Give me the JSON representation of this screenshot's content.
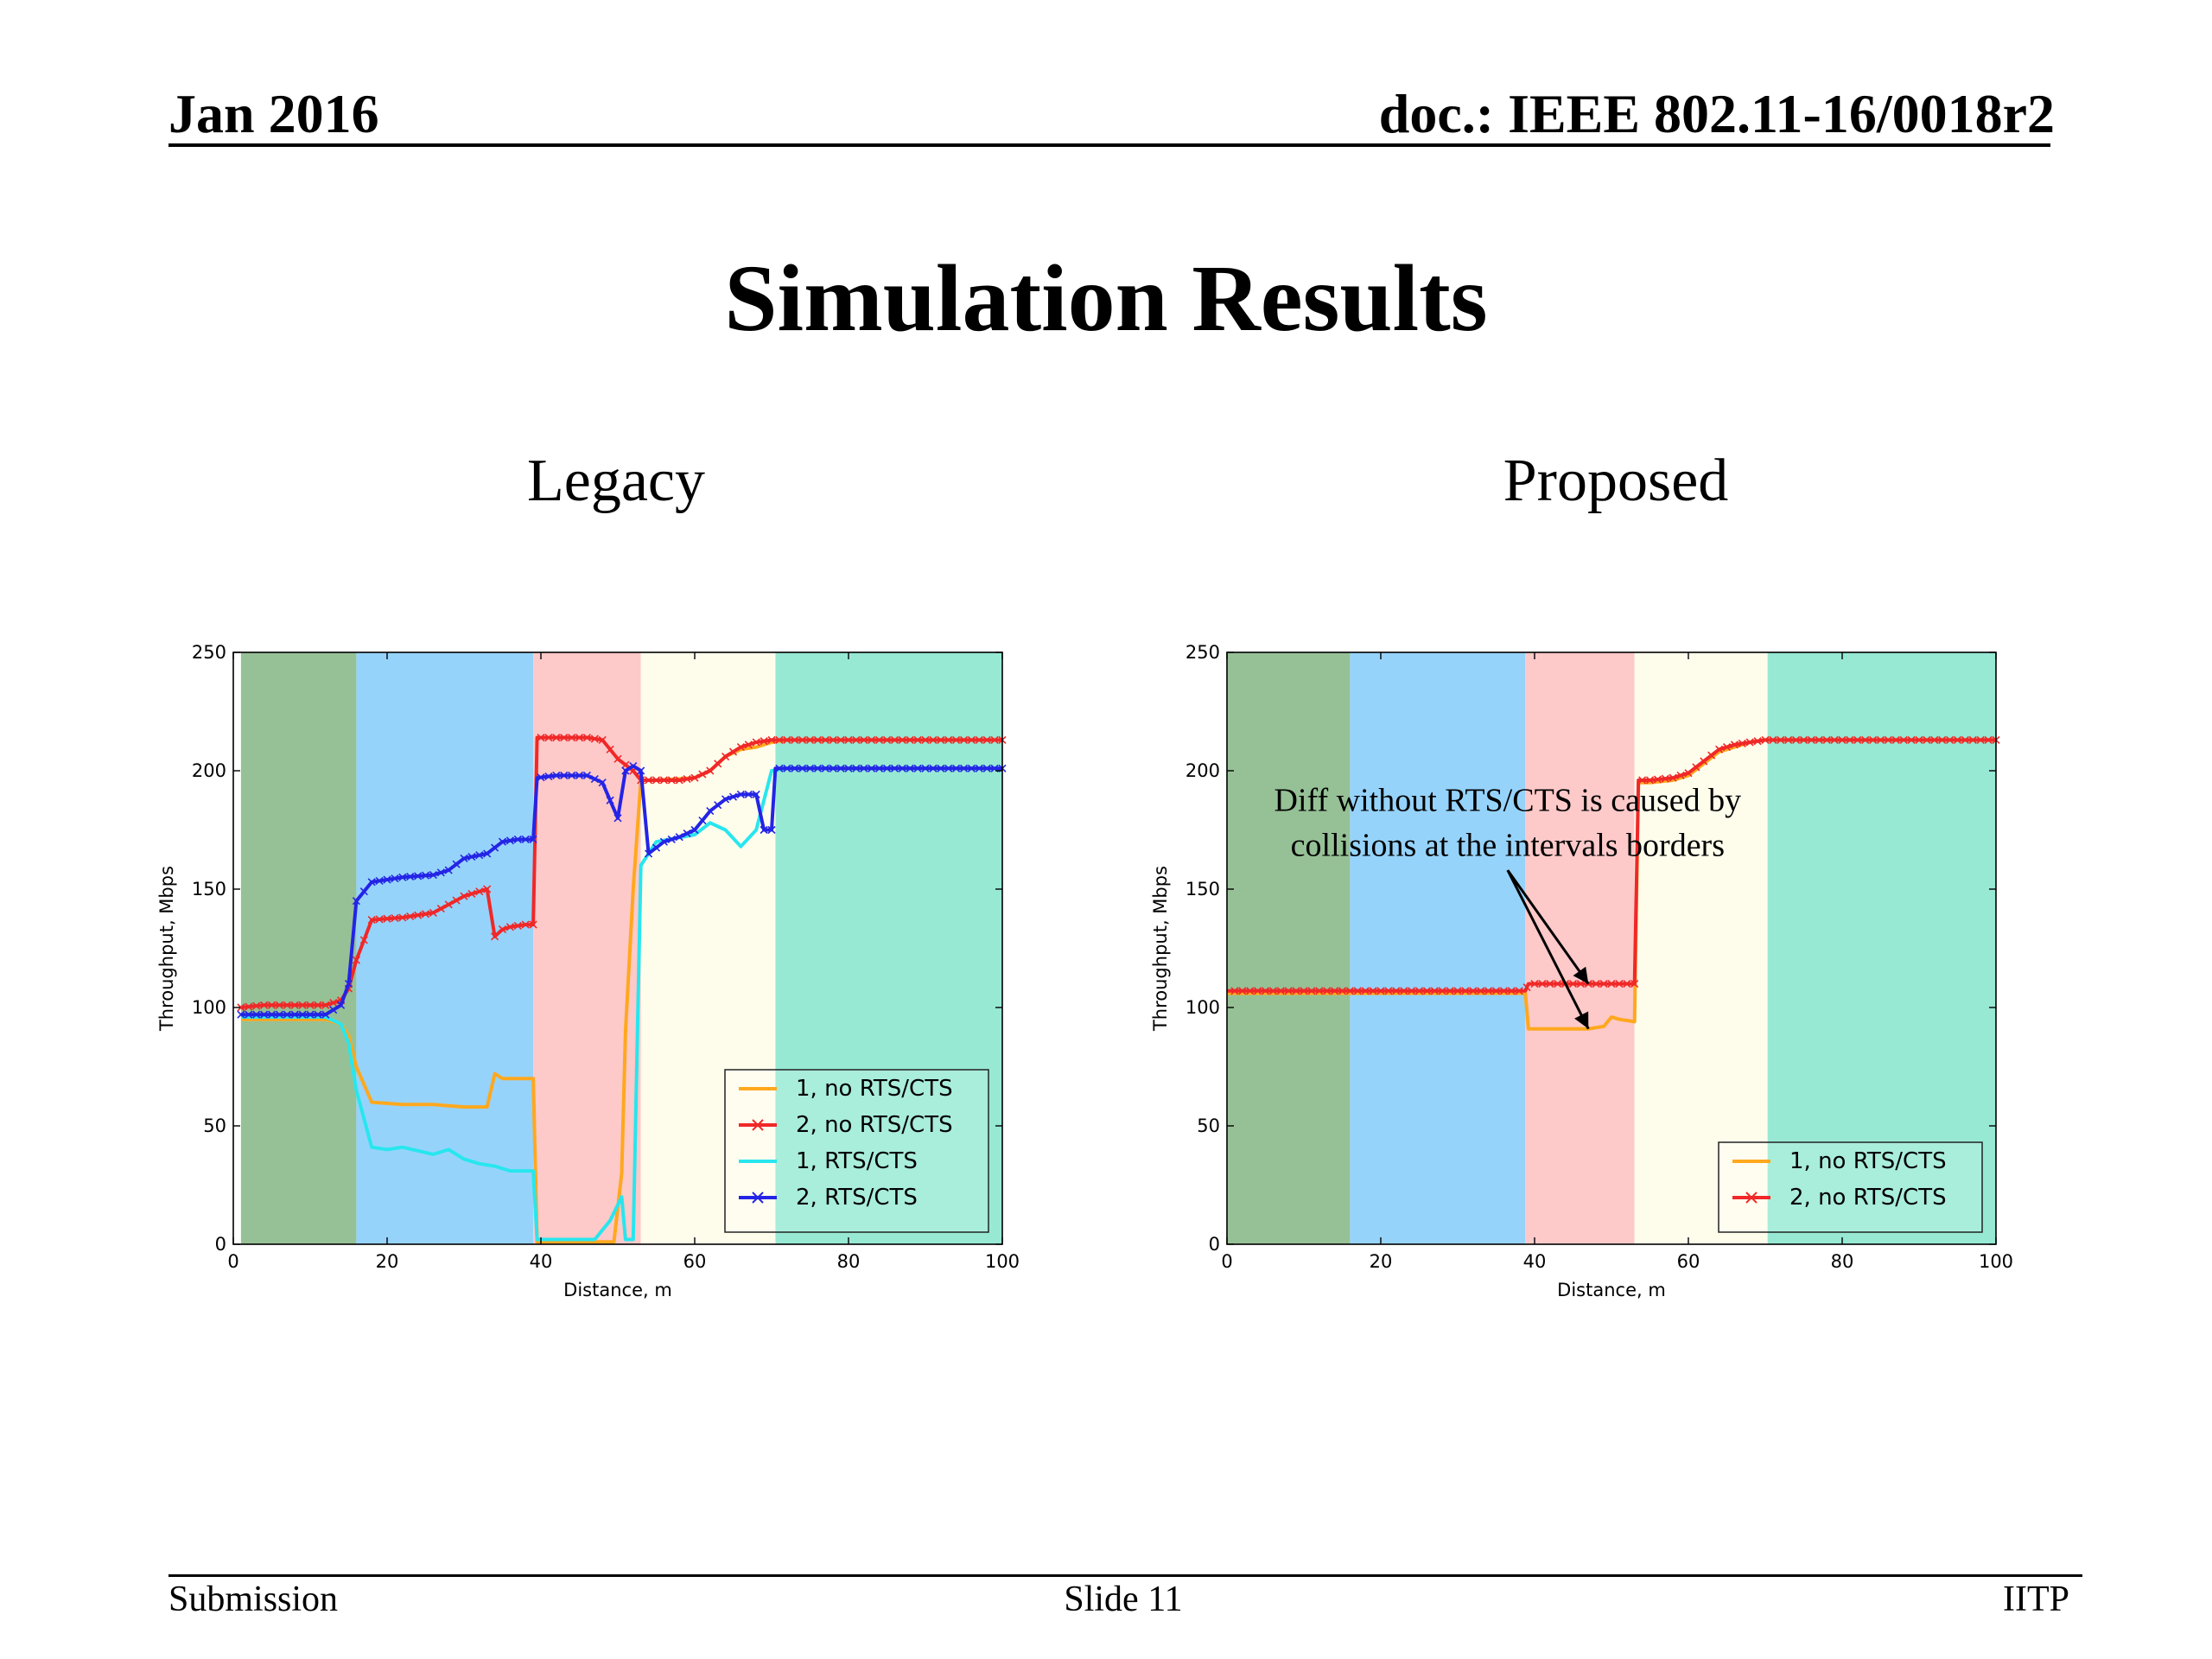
{
  "header": {
    "left": "Jan 2016",
    "right": "doc.: IEEE 802.11-16/0018r2"
  },
  "title": "Simulation Results",
  "footer": {
    "left": "Submission",
    "center": "Slide 11",
    "right": "IITP"
  },
  "colors": {
    "band_colors": [
      "#96c196",
      "#96d3fb",
      "#fdc9c9",
      "#fefdec",
      "#97e9d4"
    ],
    "series_colors": [
      "#ffa81e",
      "#f02828",
      "#28e6ee",
      "#2424e6"
    ]
  },
  "chart_data": [
    {
      "type": "line",
      "title": "Legacy",
      "xlabel": "Distance, m",
      "ylabel": "Throughput, Mbps",
      "xlim": [
        0,
        100
      ],
      "ylim": [
        0,
        250
      ],
      "xticks": [
        0,
        20,
        40,
        60,
        80,
        100
      ],
      "yticks": [
        0,
        50,
        100,
        150,
        200,
        250
      ],
      "bands": [
        [
          1,
          16
        ],
        [
          16,
          39
        ],
        [
          39,
          53
        ],
        [
          53,
          70.5
        ],
        [
          70.5,
          100
        ]
      ],
      "legend_position": "lower-right",
      "series": [
        {
          "name": "1, no RTS/CTS",
          "marker": "none",
          "color": "#ffa81e",
          "x": [
            1,
            4,
            8,
            12,
            14,
            15,
            16,
            18,
            22,
            26,
            30,
            33,
            34,
            35,
            36,
            38,
            39,
            39.5,
            42,
            47,
            49.5,
            50.5,
            51,
            52,
            53,
            55,
            60,
            62,
            64,
            66,
            68,
            70,
            72,
            80,
            90,
            100
          ],
          "y": [
            95,
            95,
            95,
            95,
            93,
            88,
            75,
            60,
            59,
            59,
            58,
            58,
            72,
            70,
            70,
            70,
            70,
            1,
            1,
            1,
            1,
            30,
            90,
            150,
            196,
            196,
            197,
            200,
            206,
            209,
            210,
            212,
            213,
            213,
            213,
            213
          ]
        },
        {
          "name": "2, no RTS/CTS",
          "marker": "x",
          "color": "#f02828",
          "x": [
            1,
            4,
            8,
            12,
            14,
            15,
            16,
            18,
            22,
            26,
            30,
            33,
            34,
            35,
            36,
            38,
            39,
            39.5,
            42,
            46,
            48,
            50,
            52,
            53,
            55,
            58,
            60,
            62,
            64,
            66,
            68,
            70,
            72,
            80,
            90,
            100
          ],
          "y": [
            100,
            101,
            101,
            101,
            103,
            108,
            120,
            137,
            138,
            140,
            147,
            150,
            130,
            133,
            134,
            135,
            135,
            214,
            214,
            214,
            213,
            205,
            200,
            196,
            196,
            196,
            197,
            200,
            206,
            210,
            212,
            213,
            213,
            213,
            213,
            213
          ]
        },
        {
          "name": "1, RTS/CTS",
          "marker": "none",
          "color": "#28e6ee",
          "x": [
            1,
            4,
            8,
            12,
            14,
            15,
            16,
            18,
            20,
            22,
            26,
            28,
            30,
            32,
            34,
            36,
            39,
            39.5,
            42,
            47,
            49,
            50.5,
            51,
            52,
            53,
            55,
            60,
            62,
            64,
            66,
            68,
            70,
            72,
            80,
            90,
            100
          ],
          "y": [
            96,
            96,
            96,
            96,
            93,
            85,
            65,
            41,
            40,
            41,
            38,
            40,
            36,
            34,
            33,
            31,
            31,
            2,
            2,
            2,
            10,
            20,
            2,
            2,
            160,
            170,
            173,
            178,
            175,
            168,
            175,
            200,
            201,
            201,
            201,
            201
          ]
        },
        {
          "name": "2, RTS/CTS",
          "marker": "x",
          "color": "#2424e6",
          "x": [
            1,
            4,
            8,
            12,
            14,
            15,
            16,
            18,
            22,
            26,
            28,
            30,
            33,
            35,
            37,
            39,
            39.5,
            42,
            46,
            48,
            50,
            51,
            52,
            53,
            54,
            56,
            58,
            60,
            62,
            64,
            66,
            68,
            69,
            70,
            70.5,
            72,
            80,
            90,
            100
          ],
          "y": [
            97,
            97,
            97,
            97,
            101,
            110,
            145,
            153,
            155,
            156,
            158,
            163,
            165,
            170,
            171,
            171,
            197,
            198,
            198,
            195,
            180,
            200,
            202,
            200,
            165,
            170,
            172,
            175,
            183,
            188,
            190,
            190,
            175,
            175,
            201,
            201,
            201,
            201,
            201
          ]
        }
      ]
    },
    {
      "type": "line",
      "title": "Proposed",
      "xlabel": "Distance, m",
      "ylabel": "Throughput, Mbps",
      "xlim": [
        0,
        100
      ],
      "ylim": [
        0,
        250
      ],
      "xticks": [
        0,
        20,
        40,
        60,
        80,
        100
      ],
      "yticks": [
        0,
        50,
        100,
        150,
        200,
        250
      ],
      "bands": [
        [
          0,
          16
        ],
        [
          16,
          38.8
        ],
        [
          38.8,
          53
        ],
        [
          53,
          70.3
        ],
        [
          70.3,
          100
        ]
      ],
      "legend_position": "lower-right",
      "annotation": {
        "lines": [
          "Diff without RTS/CTS is caused by",
          "collisions at the intervals borders"
        ],
        "targets": [
          [
            47,
            110
          ],
          [
            47,
            91
          ]
        ]
      },
      "series": [
        {
          "name": "1, no RTS/CTS",
          "marker": "none",
          "color": "#ffa81e",
          "x": [
            0,
            10,
            20,
            30,
            38.8,
            39.2,
            44,
            47,
            49,
            50,
            51,
            53,
            53.5,
            55,
            58,
            60,
            62,
            64,
            66,
            68,
            70,
            72,
            80,
            90,
            100
          ],
          "y": [
            106,
            106,
            106,
            106,
            106,
            91,
            91,
            91,
            92,
            96,
            95,
            94,
            195,
            195,
            196,
            198,
            203,
            208,
            210,
            212,
            213,
            213,
            213,
            213,
            213
          ]
        },
        {
          "name": "2, no RTS/CTS",
          "marker": "x",
          "color": "#f02828",
          "x": [
            0,
            10,
            20,
            30,
            38.8,
            39.2,
            44,
            48,
            52,
            53,
            53.5,
            55,
            58,
            60,
            62,
            64,
            66,
            68,
            70,
            72,
            80,
            90,
            100
          ],
          "y": [
            107,
            107,
            107,
            107,
            107,
            110,
            110,
            110,
            110,
            110,
            196,
            196,
            197,
            199,
            204,
            209,
            211,
            212,
            213,
            213,
            213,
            213,
            213
          ]
        }
      ]
    }
  ]
}
